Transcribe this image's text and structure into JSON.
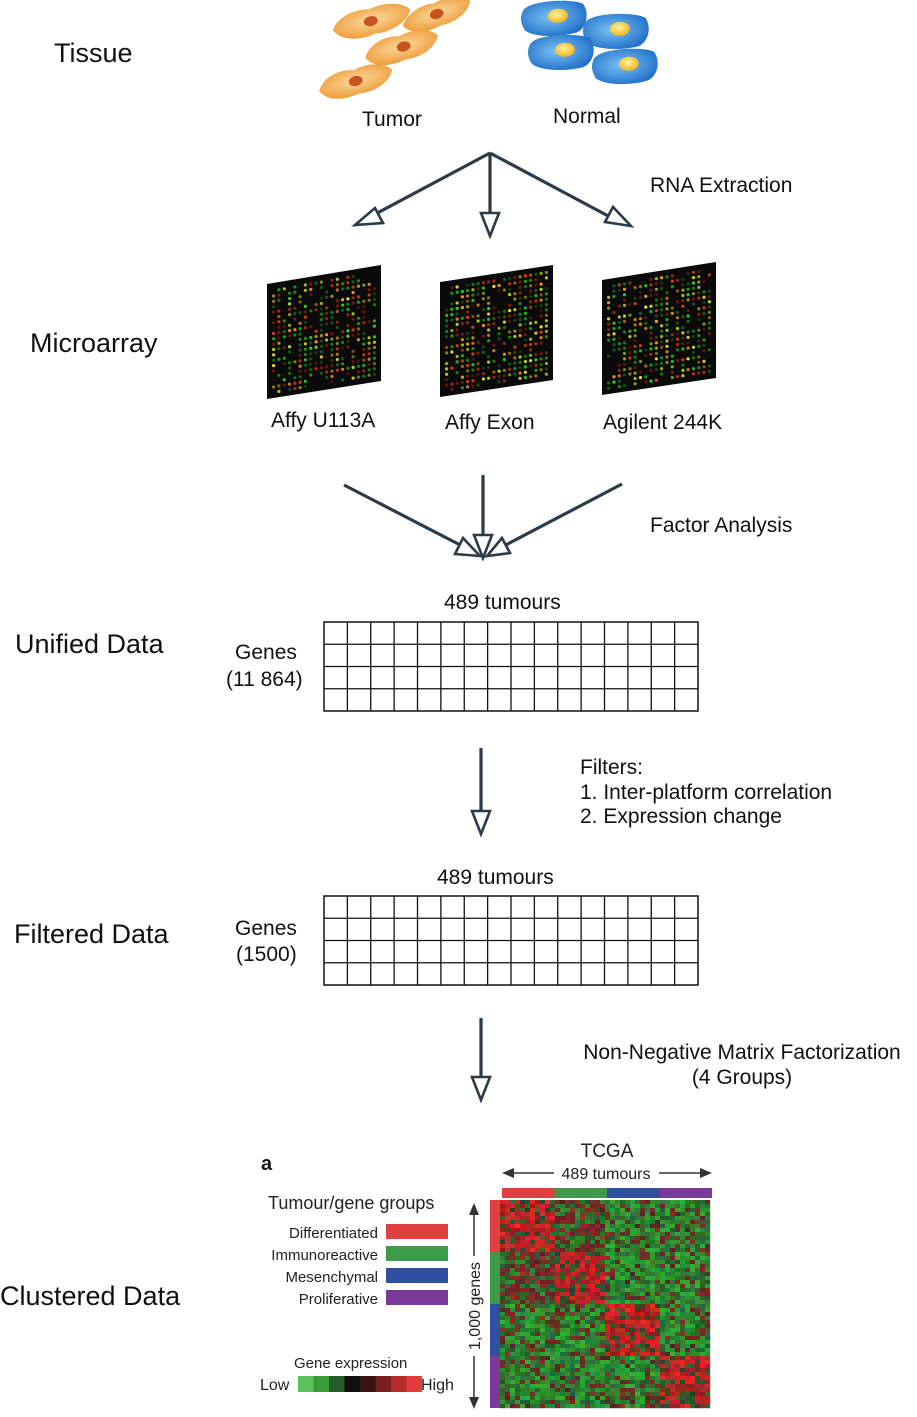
{
  "stages": {
    "tissue": "Tissue",
    "microarray": "Microarray",
    "unified": "Unified Data",
    "filtered": "Filtered Data",
    "clustered": "Clustered Data"
  },
  "tissue": {
    "tumor": "Tumor",
    "normal": "Normal"
  },
  "steps": {
    "rna": "RNA Extraction",
    "factor": "Factor Analysis",
    "filters_title": "Filters:",
    "filter_1": "1. Inter-platform correlation",
    "filter_2": "2. Expression change",
    "nmf_1": "Non-Negative Matrix Factorization",
    "nmf_2": "(4 Groups)"
  },
  "platforms": [
    "Affy U113A",
    "Affy Exon",
    "Agilent 244K"
  ],
  "unified": {
    "tumours": "489 tumours",
    "genes": "Genes",
    "count": "(11 864)"
  },
  "filtered": {
    "tumours": "489 tumours",
    "genes": "Genes",
    "count": "(1500)"
  },
  "heatmap": {
    "panel": "a",
    "title": "TCGA",
    "tumours": "489 tumours",
    "legend_title": "Tumour/gene groups",
    "genes_axis": "1,000 genes",
    "groups": [
      {
        "name": "Differentiated",
        "color": "#e04040"
      },
      {
        "name": "Immunoreactive",
        "color": "#3d9a4a"
      },
      {
        "name": "Mesenchymal",
        "color": "#2f4fa0"
      },
      {
        "name": "Proliferative",
        "color": "#7a3a9a"
      }
    ],
    "expression_title": "Gene expression",
    "low": "Low",
    "high": "High",
    "scale_colors": [
      "#5cc25c",
      "#3a9a3a",
      "#245c2c",
      "#111111",
      "#3a1212",
      "#7a1e1e",
      "#b52a2a",
      "#e23a3a"
    ]
  },
  "colors": {
    "tumor_cell": "#f2a94a",
    "tumor_nucleus": "#c8551c",
    "normal_cell": "#2f86d8",
    "normal_nucleus": "#f7c530",
    "arrow": "#2d3a48"
  }
}
